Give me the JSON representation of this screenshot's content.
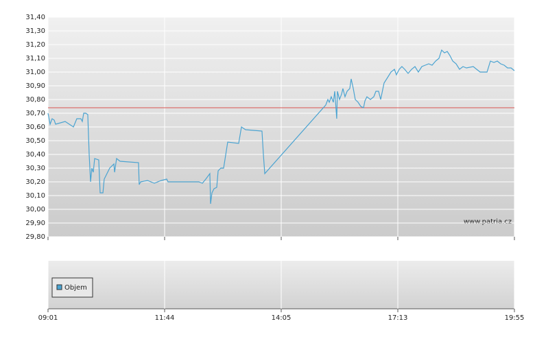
{
  "chart_data": {
    "type": "line",
    "xlim": [
      0,
      4
    ],
    "xticks": [
      {
        "value": 0,
        "label": "09:01"
      },
      {
        "value": 1,
        "label": "11:44"
      },
      {
        "value": 2,
        "label": "14:05"
      },
      {
        "value": 3,
        "label": "17:13"
      },
      {
        "value": 4,
        "label": "19:55"
      }
    ],
    "ylim": [
      29.8,
      31.4
    ],
    "yticks": [
      {
        "value": 29.8,
        "label": "29,80"
      },
      {
        "value": 29.9,
        "label": "29,90"
      },
      {
        "value": 30.0,
        "label": "30,00"
      },
      {
        "value": 30.1,
        "label": "30,10"
      },
      {
        "value": 30.2,
        "label": "30,20"
      },
      {
        "value": 30.3,
        "label": "30,30"
      },
      {
        "value": 30.4,
        "label": "30,40"
      },
      {
        "value": 30.5,
        "label": "30,50"
      },
      {
        "value": 30.6,
        "label": "30,60"
      },
      {
        "value": 30.7,
        "label": "30,70"
      },
      {
        "value": 30.8,
        "label": "30,80"
      },
      {
        "value": 30.9,
        "label": "30,90"
      },
      {
        "value": 31.0,
        "label": "31,00"
      },
      {
        "value": 31.1,
        "label": "31,10"
      },
      {
        "value": 31.2,
        "label": "31,20"
      },
      {
        "value": 31.3,
        "label": "31,30"
      },
      {
        "value": 31.4,
        "label": "31,40"
      }
    ],
    "grid": true,
    "reference_line": {
      "value": 30.74,
      "color": "#d9534f"
    },
    "watermark": "www.patria.cz",
    "volume_legend": {
      "label": "Objem",
      "color": "#4aa3d1"
    },
    "series": [
      {
        "color": "#4aa3d1",
        "x": [
          0,
          0.018,
          0.035,
          0.053,
          0.065,
          0.147,
          0.218,
          0.247,
          0.282,
          0.294,
          0.306,
          0.324,
          0.341,
          0.353,
          0.365,
          0.376,
          0.388,
          0.4,
          0.435,
          0.447,
          0.471,
          0.482,
          0.529,
          0.565,
          0.571,
          0.588,
          0.618,
          0.776,
          0.782,
          0.794,
          0.853,
          0.912,
          0.971,
          1.018,
          1.029,
          1.088,
          1.176,
          1.294,
          1.324,
          1.353,
          1.388,
          1.394,
          1.406,
          1.424,
          1.447,
          1.459,
          1.482,
          1.506,
          1.541,
          1.635,
          1.659,
          1.694,
          1.835,
          1.847,
          1.859,
          2.382,
          2.4,
          2.412,
          2.429,
          2.447,
          2.459,
          2.471,
          2.476,
          2.482,
          2.5,
          2.518,
          2.529,
          2.547,
          2.565,
          2.588,
          2.6,
          2.618,
          2.635,
          2.659,
          2.682,
          2.706,
          2.718,
          2.735,
          2.765,
          2.794,
          2.812,
          2.835,
          2.853,
          2.882,
          2.912,
          2.941,
          2.971,
          2.988,
          3.012,
          3.035,
          3.059,
          3.088,
          3.118,
          3.147,
          3.176,
          3.206,
          3.235,
          3.265,
          3.294,
          3.324,
          3.353,
          3.376,
          3.4,
          3.424,
          3.447,
          3.471,
          3.5,
          3.529,
          3.559,
          3.588,
          3.647,
          3.676,
          3.706,
          3.765,
          3.794,
          3.824,
          3.853,
          3.882,
          3.912,
          3.941,
          3.971,
          4
        ],
        "values": [
          30.7,
          30.62,
          30.66,
          30.65,
          30.62,
          30.64,
          30.6,
          30.66,
          30.66,
          30.64,
          30.7,
          30.7,
          30.69,
          30.4,
          30.2,
          30.3,
          30.27,
          30.37,
          30.36,
          30.12,
          30.12,
          30.22,
          30.3,
          30.33,
          30.27,
          30.37,
          30.35,
          30.34,
          30.18,
          30.2,
          30.21,
          30.19,
          30.21,
          30.22,
          30.2,
          30.2,
          30.2,
          30.2,
          30.19,
          30.22,
          30.26,
          30.04,
          30.12,
          30.15,
          30.16,
          30.28,
          30.3,
          30.3,
          30.49,
          30.48,
          30.6,
          30.58,
          30.57,
          30.4,
          30.26,
          30.76,
          30.8,
          30.78,
          30.82,
          30.78,
          30.86,
          30.72,
          30.66,
          30.86,
          30.8,
          30.84,
          30.88,
          30.82,
          30.86,
          30.88,
          30.95,
          30.88,
          30.8,
          30.78,
          30.75,
          30.74,
          30.79,
          30.82,
          30.8,
          30.82,
          30.86,
          30.86,
          30.8,
          30.92,
          30.96,
          31.0,
          31.02,
          30.98,
          31.02,
          31.04,
          31.02,
          30.99,
          31.02,
          31.04,
          31.0,
          31.04,
          31.05,
          31.06,
          31.05,
          31.08,
          31.1,
          31.16,
          31.14,
          31.15,
          31.12,
          31.08,
          31.06,
          31.02,
          31.04,
          31.03,
          31.04,
          31.02,
          31.0,
          31.0,
          31.08,
          31.07,
          31.08,
          31.06,
          31.05,
          31.03,
          31.03,
          31.01
        ]
      }
    ]
  }
}
